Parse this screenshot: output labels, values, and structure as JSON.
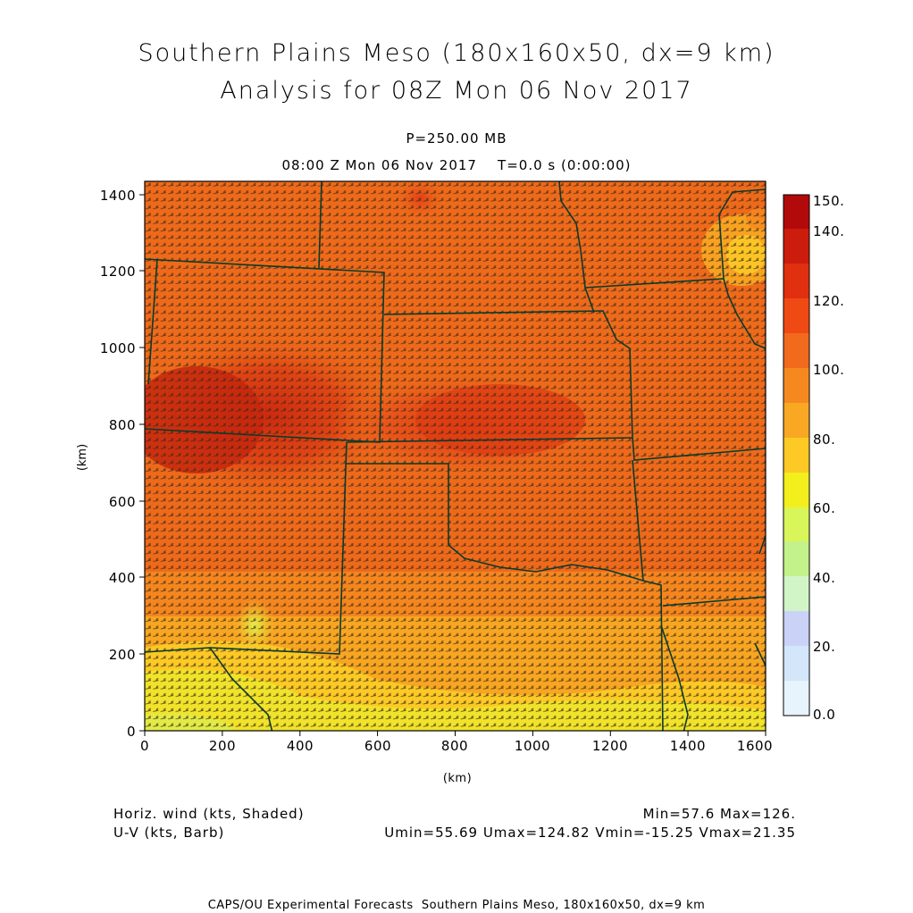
{
  "header": {
    "title_line1": "Southern Plains Meso (180x160x50, dx=9 km)",
    "title_line2": "Analysis for 08Z Mon 06 Nov 2017",
    "level": "P=250.00 MB",
    "valid_time": "08:00 Z Mon 06 Nov 2017    T=0.0 s (0:00:00)"
  },
  "axes": {
    "x_label": "(km)",
    "y_label": "(km)",
    "x_ticks": [
      "0",
      "200",
      "400",
      "600",
      "800",
      "1000",
      "1200",
      "1400",
      "1600"
    ],
    "y_ticks": [
      "0",
      "200",
      "400",
      "600",
      "800",
      "1000",
      "1200",
      "1400"
    ]
  },
  "colorbar": {
    "labels": [
      "150.",
      "140.",
      "120.",
      "100.",
      "80.",
      "60.",
      "40.",
      "20.",
      "0.0"
    ],
    "colors": [
      "#b20a0a",
      "#cc1c0c",
      "#e0300f",
      "#f04a14",
      "#f26a1c",
      "#f5891f",
      "#f8a822",
      "#fcc925",
      "#f2ef1c",
      "#d8f55a",
      "#c4f28a",
      "#d2f5c8",
      "#cbd2f7",
      "#d4e6fa",
      "#e8f4fd"
    ]
  },
  "footer": {
    "left_line1": "Horiz. wind (kts, Shaded)",
    "left_line2": "U-V (kts, Barb)",
    "right_line1": "Min=57.6 Max=126.",
    "right_line2": "Umin=55.69 Umax=124.82 Vmin=-15.25 Vmax=21.35",
    "credit": "CAPS/OU Experimental Forecasts  Southern Plains Meso, 180x160x50, dx=9 km"
  }
}
